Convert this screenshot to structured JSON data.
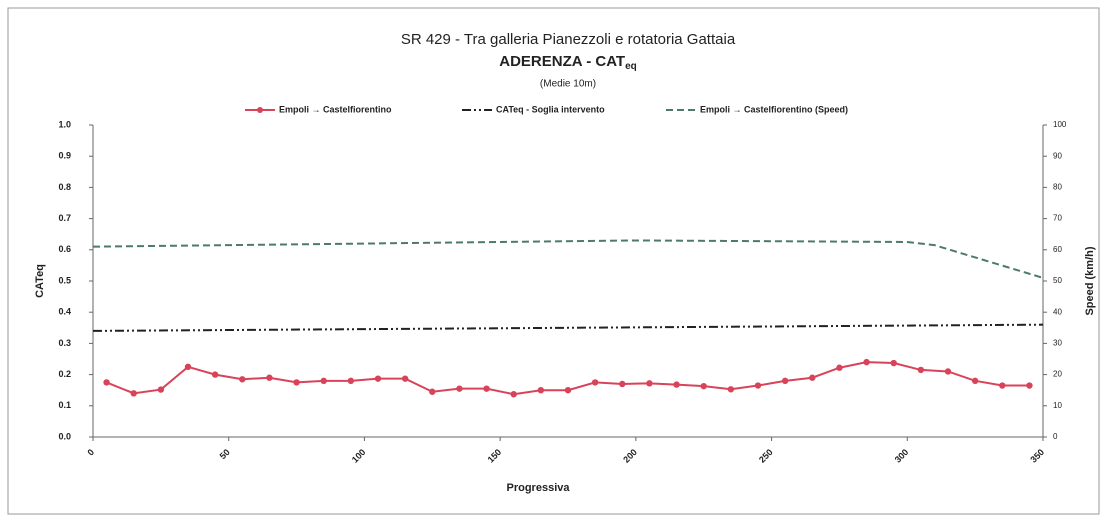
{
  "chart_data": {
    "type": "line",
    "title": "SR 429 - Tra galleria Pianezzoli e rotatoria Gattaia",
    "subtitle": "ADERENZA - CAT",
    "subtitle_subscript": "eq",
    "note": "(Medie 10m)",
    "xlabel": "Progressiva",
    "ylabel": "CATeq",
    "y2label": "Speed (km/h)",
    "xlim": [
      0,
      350
    ],
    "xticks": [
      0,
      50,
      100,
      150,
      200,
      250,
      300,
      350
    ],
    "ylim": [
      0,
      1
    ],
    "yticks": [
      {
        "value": 0,
        "label": "0.0"
      },
      0.1,
      0.2,
      0.3,
      0.4,
      0.5,
      0.6,
      0.7,
      0.8,
      0.9,
      {
        "value": 1,
        "label": "1.0"
      }
    ],
    "y2lim": [
      0,
      100
    ],
    "y2ticks": [
      0,
      10,
      20,
      30,
      40,
      50,
      60,
      70,
      80,
      90,
      100
    ],
    "series": [
      {
        "name": "Empoli → Castelfiorentino",
        "color": "#d9435a",
        "style": "solid-marker",
        "x": [
          5,
          15,
          25,
          35,
          45,
          55,
          65,
          75,
          85,
          95,
          105,
          115,
          125,
          135,
          145,
          155,
          165,
          175,
          185,
          195,
          205,
          215,
          225,
          235,
          245,
          255,
          265,
          275,
          285,
          295,
          305,
          315,
          325,
          335,
          345
        ],
        "values": [
          0.175,
          0.14,
          0.152,
          0.225,
          0.2,
          0.185,
          0.19,
          0.175,
          0.18,
          0.18,
          0.187,
          0.187,
          0.145,
          0.155,
          0.155,
          0.137,
          0.15,
          0.15,
          0.175,
          0.17,
          0.172,
          0.168,
          0.163,
          0.153,
          0.165,
          0.18,
          0.19,
          0.222,
          0.24,
          0.237,
          0.215,
          0.21,
          0.18,
          0.165,
          0.165
        ]
      },
      {
        "name": "CATeq - Soglia intervento",
        "color": "#222222",
        "style": "dashdot",
        "x": [
          0,
          350
        ],
        "values": [
          0.34,
          0.36
        ]
      },
      {
        "name": "Empoli → Castelfiorentino (Speed)",
        "color": "#4d7a6b",
        "style": "dashed",
        "axis": "y2",
        "x": [
          0,
          100,
          200,
          300,
          310,
          350
        ],
        "values": [
          61,
          62,
          63,
          62.5,
          61.5,
          51
        ]
      }
    ]
  }
}
